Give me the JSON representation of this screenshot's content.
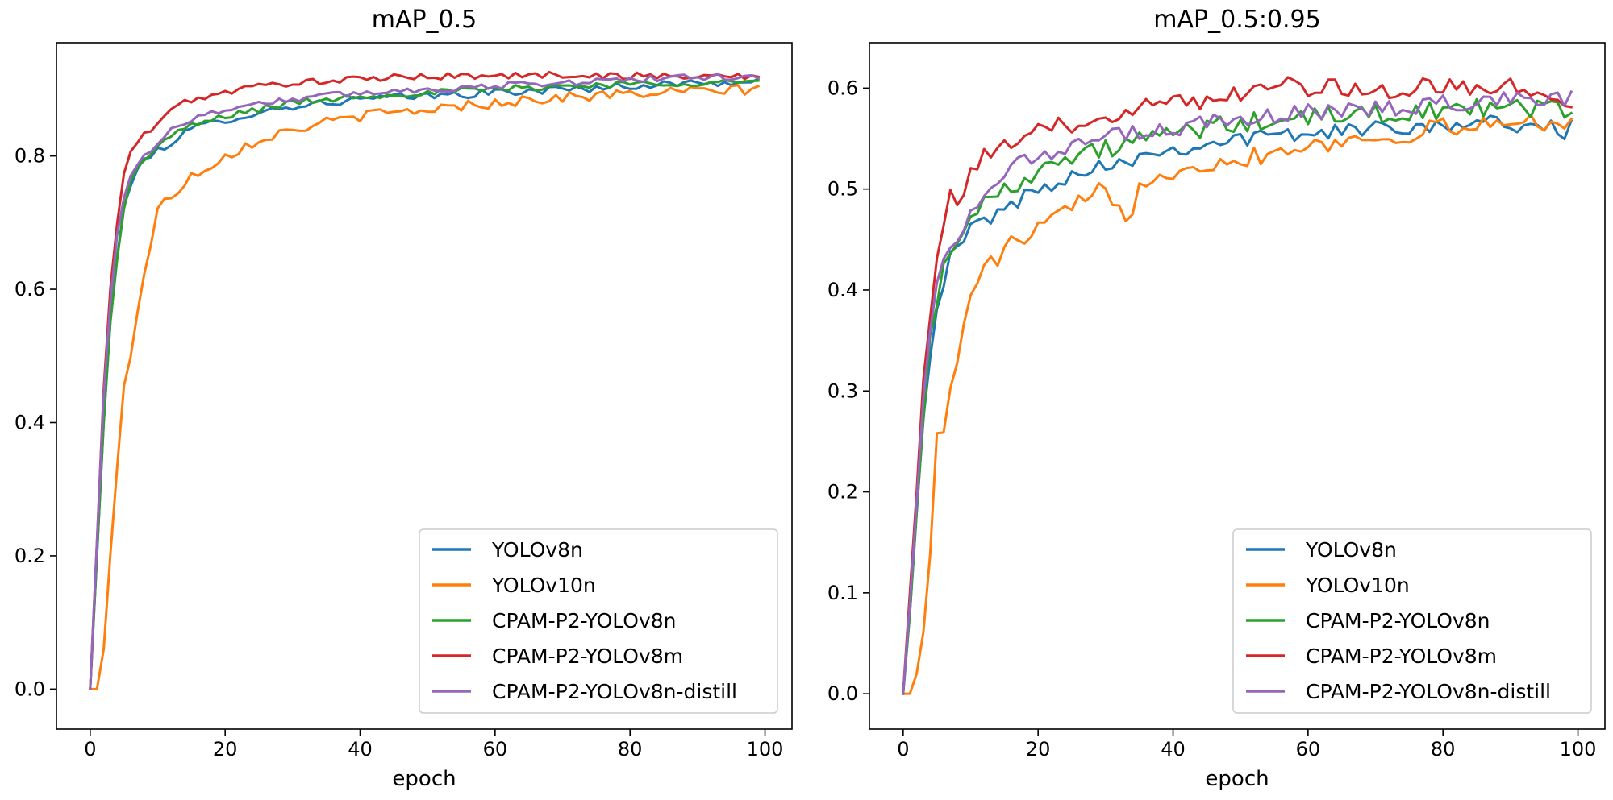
{
  "chart_data": [
    {
      "type": "line",
      "title": "mAP_0.5",
      "xlabel": "epoch",
      "ylabel": "",
      "xlim": [
        -5,
        104
      ],
      "ylim": [
        -0.06,
        0.97
      ],
      "xticks": [
        0,
        20,
        40,
        60,
        80,
        100
      ],
      "yticks": [
        0.0,
        0.2,
        0.4,
        0.6,
        0.8
      ],
      "ytick_labels": [
        "0.0",
        "0.2",
        "0.4",
        "0.6",
        "0.8"
      ],
      "legend_position": "lower-right",
      "series": [
        {
          "name": "YOLOv8n",
          "color": "#1f77b4",
          "key": [
            [
              0,
              0.0
            ],
            [
              1,
              0.2
            ],
            [
              2,
              0.4
            ],
            [
              3,
              0.55
            ],
            [
              4,
              0.65
            ],
            [
              5,
              0.72
            ],
            [
              6,
              0.76
            ],
            [
              7,
              0.78
            ],
            [
              8,
              0.79
            ],
            [
              10,
              0.81
            ],
            [
              12,
              0.82
            ],
            [
              15,
              0.84
            ],
            [
              20,
              0.855
            ],
            [
              25,
              0.865
            ],
            [
              30,
              0.875
            ],
            [
              40,
              0.885
            ],
            [
              50,
              0.89
            ],
            [
              60,
              0.895
            ],
            [
              70,
              0.9
            ],
            [
              80,
              0.905
            ],
            [
              90,
              0.91
            ],
            [
              99,
              0.91
            ]
          ],
          "noise": 0.006
        },
        {
          "name": "YOLOv10n",
          "color": "#ff7f0e",
          "key": [
            [
              0,
              0.0
            ],
            [
              1,
              0.0
            ],
            [
              2,
              0.06
            ],
            [
              3,
              0.2
            ],
            [
              4,
              0.33
            ],
            [
              5,
              0.46
            ],
            [
              6,
              0.5
            ],
            [
              7,
              0.57
            ],
            [
              8,
              0.62
            ],
            [
              9,
              0.67
            ],
            [
              10,
              0.72
            ],
            [
              12,
              0.74
            ],
            [
              15,
              0.77
            ],
            [
              20,
              0.8
            ],
            [
              25,
              0.825
            ],
            [
              30,
              0.84
            ],
            [
              35,
              0.85
            ],
            [
              40,
              0.86
            ],
            [
              50,
              0.87
            ],
            [
              60,
              0.88
            ],
            [
              70,
              0.888
            ],
            [
              80,
              0.893
            ],
            [
              90,
              0.897
            ],
            [
              99,
              0.9
            ]
          ],
          "noise": 0.008
        },
        {
          "name": "CPAM-P2-YOLOv8n",
          "color": "#2ca02c",
          "key": [
            [
              0,
              0.0
            ],
            [
              1,
              0.2
            ],
            [
              2,
              0.4
            ],
            [
              3,
              0.55
            ],
            [
              4,
              0.65
            ],
            [
              5,
              0.72
            ],
            [
              6,
              0.76
            ],
            [
              7,
              0.78
            ],
            [
              8,
              0.795
            ],
            [
              10,
              0.815
            ],
            [
              12,
              0.83
            ],
            [
              15,
              0.845
            ],
            [
              20,
              0.86
            ],
            [
              25,
              0.87
            ],
            [
              30,
              0.88
            ],
            [
              40,
              0.89
            ],
            [
              50,
              0.895
            ],
            [
              60,
              0.9
            ],
            [
              70,
              0.905
            ],
            [
              80,
              0.908
            ],
            [
              90,
              0.91
            ],
            [
              99,
              0.912
            ]
          ],
          "noise": 0.005
        },
        {
          "name": "CPAM-P2-YOLOv8m",
          "color": "#d62728",
          "key": [
            [
              0,
              0.0
            ],
            [
              1,
              0.22
            ],
            [
              2,
              0.45
            ],
            [
              3,
              0.6
            ],
            [
              4,
              0.7
            ],
            [
              5,
              0.77
            ],
            [
              6,
              0.81
            ],
            [
              7,
              0.82
            ],
            [
              8,
              0.83
            ],
            [
              10,
              0.85
            ],
            [
              12,
              0.87
            ],
            [
              15,
              0.885
            ],
            [
              20,
              0.895
            ],
            [
              25,
              0.905
            ],
            [
              30,
              0.91
            ],
            [
              40,
              0.915
            ],
            [
              50,
              0.92
            ],
            [
              60,
              0.92
            ],
            [
              70,
              0.922
            ],
            [
              80,
              0.92
            ],
            [
              90,
              0.92
            ],
            [
              99,
              0.92
            ]
          ],
          "noise": 0.005
        },
        {
          "name": "CPAM-P2-YOLOv8n-distill",
          "color": "#9467bd",
          "key": [
            [
              0,
              0.0
            ],
            [
              1,
              0.22
            ],
            [
              2,
              0.44
            ],
            [
              3,
              0.58
            ],
            [
              4,
              0.68
            ],
            [
              5,
              0.74
            ],
            [
              6,
              0.77
            ],
            [
              7,
              0.79
            ],
            [
              8,
              0.8
            ],
            [
              10,
              0.82
            ],
            [
              12,
              0.84
            ],
            [
              15,
              0.855
            ],
            [
              20,
              0.87
            ],
            [
              25,
              0.88
            ],
            [
              30,
              0.885
            ],
            [
              40,
              0.895
            ],
            [
              50,
              0.9
            ],
            [
              60,
              0.905
            ],
            [
              70,
              0.91
            ],
            [
              80,
              0.915
            ],
            [
              90,
              0.918
            ],
            [
              99,
              0.92
            ]
          ],
          "noise": 0.005
        }
      ]
    },
    {
      "type": "line",
      "title": "mAP_0.5:0.95",
      "xlabel": "epoch",
      "ylabel": "",
      "xlim": [
        -5,
        104
      ],
      "ylim": [
        -0.035,
        0.645
      ],
      "xticks": [
        0,
        20,
        40,
        60,
        80,
        100
      ],
      "yticks": [
        0.0,
        0.1,
        0.2,
        0.3,
        0.4,
        0.5,
        0.6
      ],
      "ytick_labels": [
        "0.0",
        "0.1",
        "0.2",
        "0.3",
        "0.4",
        "0.5",
        "0.6"
      ],
      "legend_position": "lower-right",
      "series": [
        {
          "name": "YOLOv8n",
          "color": "#1f77b4",
          "key": [
            [
              0,
              0.0
            ],
            [
              1,
              0.08
            ],
            [
              2,
              0.18
            ],
            [
              3,
              0.28
            ],
            [
              4,
              0.34
            ],
            [
              5,
              0.38
            ],
            [
              6,
              0.41
            ],
            [
              7,
              0.43
            ],
            [
              8,
              0.44
            ],
            [
              10,
              0.46
            ],
            [
              12,
              0.47
            ],
            [
              15,
              0.48
            ],
            [
              20,
              0.5
            ],
            [
              25,
              0.515
            ],
            [
              30,
              0.525
            ],
            [
              40,
              0.54
            ],
            [
              50,
              0.55
            ],
            [
              60,
              0.555
            ],
            [
              70,
              0.56
            ],
            [
              80,
              0.565
            ],
            [
              90,
              0.565
            ],
            [
              96,
              0.56
            ],
            [
              97,
              0.55
            ],
            [
              99,
              0.565
            ]
          ],
          "noise": 0.008
        },
        {
          "name": "YOLOv10n",
          "color": "#ff7f0e",
          "key": [
            [
              0,
              0.0
            ],
            [
              1,
              0.0
            ],
            [
              2,
              0.02
            ],
            [
              3,
              0.07
            ],
            [
              4,
              0.14
            ],
            [
              5,
              0.25
            ],
            [
              6,
              0.26
            ],
            [
              7,
              0.3
            ],
            [
              8,
              0.33
            ],
            [
              9,
              0.37
            ],
            [
              10,
              0.39
            ],
            [
              12,
              0.42
            ],
            [
              15,
              0.44
            ],
            [
              20,
              0.46
            ],
            [
              25,
              0.48
            ],
            [
              30,
              0.5
            ],
            [
              34,
              0.47
            ],
            [
              35,
              0.51
            ],
            [
              40,
              0.52
            ],
            [
              50,
              0.53
            ],
            [
              60,
              0.545
            ],
            [
              70,
              0.55
            ],
            [
              80,
              0.56
            ],
            [
              90,
              0.565
            ],
            [
              99,
              0.57
            ]
          ],
          "noise": 0.01
        },
        {
          "name": "CPAM-P2-YOLOv8n",
          "color": "#2ca02c",
          "key": [
            [
              0,
              0.0
            ],
            [
              1,
              0.08
            ],
            [
              2,
              0.18
            ],
            [
              3,
              0.28
            ],
            [
              4,
              0.35
            ],
            [
              5,
              0.39
            ],
            [
              6,
              0.42
            ],
            [
              7,
              0.44
            ],
            [
              8,
              0.455
            ],
            [
              10,
              0.47
            ],
            [
              12,
              0.485
            ],
            [
              15,
              0.5
            ],
            [
              20,
              0.52
            ],
            [
              25,
              0.53
            ],
            [
              30,
              0.54
            ],
            [
              40,
              0.555
            ],
            [
              50,
              0.565
            ],
            [
              60,
              0.57
            ],
            [
              70,
              0.575
            ],
            [
              80,
              0.578
            ],
            [
              90,
              0.58
            ],
            [
              99,
              0.58
            ]
          ],
          "noise": 0.01
        },
        {
          "name": "CPAM-P2-YOLOv8m",
          "color": "#d62728",
          "key": [
            [
              0,
              0.0
            ],
            [
              1,
              0.1
            ],
            [
              2,
              0.2
            ],
            [
              3,
              0.32
            ],
            [
              4,
              0.38
            ],
            [
              5,
              0.43
            ],
            [
              6,
              0.47
            ],
            [
              7,
              0.49
            ],
            [
              8,
              0.48
            ],
            [
              10,
              0.52
            ],
            [
              12,
              0.53
            ],
            [
              15,
              0.54
            ],
            [
              20,
              0.555
            ],
            [
              25,
              0.565
            ],
            [
              30,
              0.575
            ],
            [
              40,
              0.585
            ],
            [
              50,
              0.595
            ],
            [
              52,
              0.61
            ],
            [
              60,
              0.6
            ],
            [
              70,
              0.6
            ],
            [
              80,
              0.6
            ],
            [
              90,
              0.6
            ],
            [
              99,
              0.59
            ]
          ],
          "noise": 0.01
        },
        {
          "name": "CPAM-P2-YOLOv8n-distill",
          "color": "#9467bd",
          "key": [
            [
              0,
              0.0
            ],
            [
              1,
              0.09
            ],
            [
              2,
              0.19
            ],
            [
              3,
              0.3
            ],
            [
              4,
              0.36
            ],
            [
              5,
              0.4
            ],
            [
              6,
              0.43
            ],
            [
              7,
              0.44
            ],
            [
              8,
              0.45
            ],
            [
              10,
              0.48
            ],
            [
              12,
              0.5
            ],
            [
              15,
              0.52
            ],
            [
              20,
              0.53
            ],
            [
              25,
              0.54
            ],
            [
              30,
              0.55
            ],
            [
              40,
              0.56
            ],
            [
              50,
              0.57
            ],
            [
              60,
              0.575
            ],
            [
              70,
              0.58
            ],
            [
              80,
              0.585
            ],
            [
              90,
              0.59
            ],
            [
              99,
              0.59
            ]
          ],
          "noise": 0.009
        }
      ]
    }
  ]
}
